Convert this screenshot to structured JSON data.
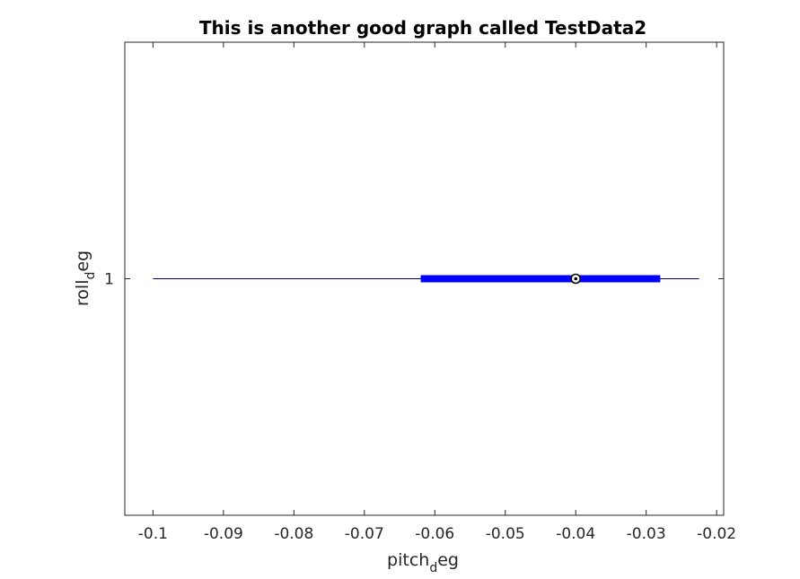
{
  "chart_data": {
    "type": "boxplot",
    "orientation": "horizontal",
    "title": "This is another good graph called TestData2",
    "xlabel": {
      "main": "pitch",
      "sub": "d",
      "tail": "eg"
    },
    "ylabel": {
      "main": "roll",
      "sub": "d",
      "tail": "eg"
    },
    "xlim": [
      -0.104,
      -0.019
    ],
    "x_ticks": [
      -0.1,
      -0.09,
      -0.08,
      -0.07,
      -0.06,
      -0.05,
      -0.04,
      -0.03,
      -0.02
    ],
    "x_tick_labels": [
      "-0.1",
      "-0.09",
      "-0.08",
      "-0.07",
      "-0.06",
      "-0.05",
      "-0.04",
      "-0.03",
      "-0.02"
    ],
    "y_ticks": [
      1
    ],
    "y_tick_labels": [
      "1"
    ],
    "grid": false,
    "boxes": [
      {
        "position": 1,
        "whisker_low": -0.1,
        "q1": -0.062,
        "median": -0.04,
        "q3": -0.028,
        "whisker_high": -0.0225
      }
    ],
    "colors": {
      "box": "#0000ff",
      "whisker": "#00008b",
      "axes": "#262626"
    }
  }
}
